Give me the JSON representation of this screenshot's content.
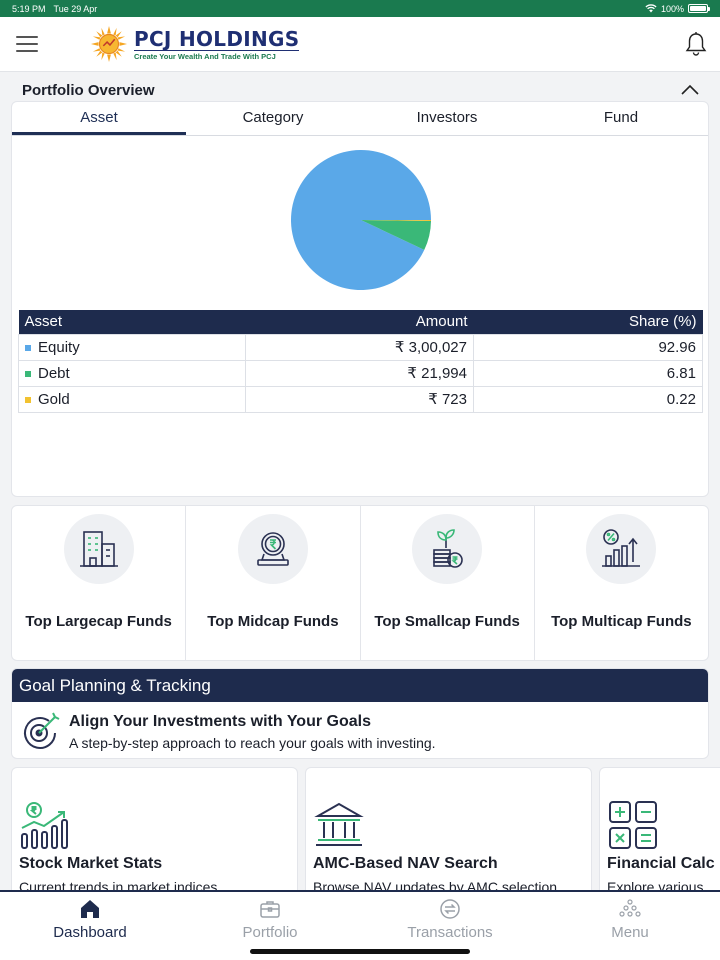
{
  "status": {
    "time": "5:19 PM",
    "date": "Tue 29 Apr",
    "battery": "100%"
  },
  "brand": {
    "name": "PCJ HOLDINGS",
    "tagline": "Create Your Wealth And Trade With PCJ"
  },
  "portfolio": {
    "title": "Portfolio Overview",
    "tabs": [
      "Asset",
      "Category",
      "Investors",
      "Fund"
    ],
    "active_tab": "Asset",
    "table": {
      "headers": [
        "Asset",
        "Amount",
        "Share (%)"
      ],
      "rows": [
        {
          "name": "Equity",
          "amount": "₹ 3,00,027",
          "share": "92.96",
          "color": "#5aa8e8"
        },
        {
          "name": "Debt",
          "amount": "₹ 21,994",
          "share": "6.81",
          "color": "#3ab878"
        },
        {
          "name": "Gold",
          "amount": "₹ 723",
          "share": "0.22",
          "color": "#f2c230"
        }
      ]
    }
  },
  "chart_data": {
    "type": "pie",
    "categories": [
      "Equity",
      "Debt",
      "Gold"
    ],
    "values": [
      92.96,
      6.81,
      0.22
    ],
    "colors": [
      "#5aa8e8",
      "#3ab878",
      "#f2c230"
    ]
  },
  "funds": [
    {
      "label": "Top Largecap Funds",
      "icon": "building-icon"
    },
    {
      "label": "Top Midcap Funds",
      "icon": "rupee-coin-icon"
    },
    {
      "label": "Top Smallcap Funds",
      "icon": "plant-coins-icon"
    },
    {
      "label": "Top Multicap Funds",
      "icon": "percent-growth-icon"
    }
  ],
  "goal": {
    "header": "Goal Planning & Tracking",
    "title": "Align Your Investments with Your Goals",
    "subtitle": "A step-by-step approach to reach your goals with investing."
  },
  "tools": [
    {
      "title": "Stock Market Stats",
      "subtitle": "Current trends in market indices"
    },
    {
      "title": "AMC-Based NAV Search",
      "subtitle": "Browse NAV updates by AMC selection"
    },
    {
      "title": "Financial Calc",
      "subtitle": "Explore various"
    }
  ],
  "tabbar": [
    {
      "label": "Dashboard",
      "active": true
    },
    {
      "label": "Portfolio",
      "active": false
    },
    {
      "label": "Transactions",
      "active": false
    },
    {
      "label": "Menu",
      "active": false
    }
  ],
  "colors": {
    "navy": "#1e2b4d",
    "green": "#1a7a4f",
    "brand": "#1f2f73"
  }
}
